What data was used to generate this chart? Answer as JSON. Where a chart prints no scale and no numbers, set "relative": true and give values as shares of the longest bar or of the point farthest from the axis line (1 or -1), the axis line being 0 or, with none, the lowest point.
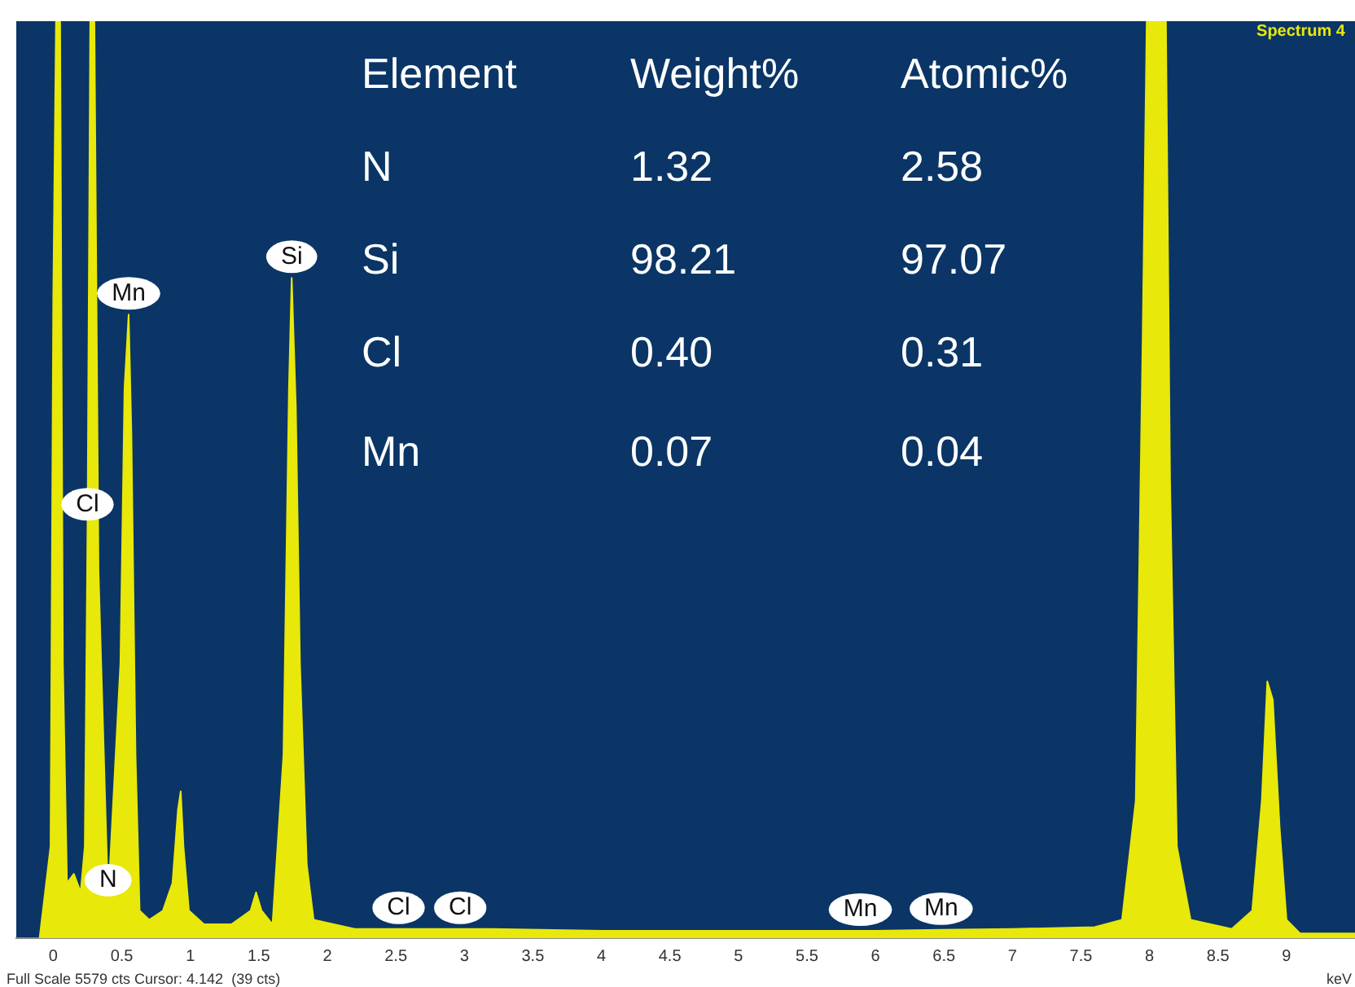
{
  "chart_data": {
    "type": "area",
    "title": "Spectrum 4",
    "xlabel": "keV",
    "relative": true,
    "grid": false,
    "legend": false,
    "marker": "none",
    "xlim": [
      -0.27,
      9.5
    ],
    "xticks": [
      0,
      0.5,
      1,
      1.5,
      2,
      2.5,
      3,
      3.5,
      4,
      4.5,
      5,
      5.5,
      6,
      6.5,
      7,
      7.5,
      8,
      8.5,
      9
    ],
    "series": [
      {
        "color": "#e8e80a",
        "x": [
          -0.1,
          -0.02,
          0.0,
          0.02,
          0.05,
          0.07,
          0.1,
          0.15,
          0.2,
          0.23,
          0.25,
          0.27,
          0.3,
          0.33,
          0.4,
          0.49,
          0.52,
          0.55,
          0.57,
          0.6,
          0.63,
          0.7,
          0.8,
          0.87,
          0.91,
          0.93,
          0.95,
          0.99,
          1.1,
          1.3,
          1.44,
          1.48,
          1.52,
          1.6,
          1.68,
          1.72,
          1.74,
          1.77,
          1.8,
          1.85,
          1.9,
          2.2,
          2.52,
          2.97,
          3.2,
          4,
          5,
          5.89,
          6,
          6.48,
          7,
          7.6,
          7.8,
          7.9,
          7.95,
          7.98,
          8.12,
          8.15,
          8.2,
          8.3,
          8.6,
          8.75,
          8.82,
          8.86,
          8.9,
          8.95,
          9.0,
          9.1,
          9.5
        ],
        "values": [
          0,
          0.1,
          0.7,
          1,
          1,
          0.3,
          0.06,
          0.07,
          0.05,
          0.1,
          0.45,
          1,
          1,
          0.4,
          0.04,
          0.3,
          0.6,
          0.68,
          0.55,
          0.2,
          0.03,
          0.02,
          0.03,
          0.06,
          0.14,
          0.16,
          0.1,
          0.03,
          0.015,
          0.015,
          0.03,
          0.05,
          0.03,
          0.015,
          0.2,
          0.6,
          0.72,
          0.58,
          0.3,
          0.08,
          0.02,
          0.01,
          0.01,
          0.01,
          0.01,
          0.008,
          0.008,
          0.008,
          0.008,
          0.009,
          0.01,
          0.012,
          0.02,
          0.15,
          0.65,
          1,
          1,
          0.5,
          0.1,
          0.02,
          0.01,
          0.03,
          0.15,
          0.28,
          0.26,
          0.12,
          0.02,
          0.005,
          0.005
        ]
      }
    ],
    "annotations": [
      "Full Scale 5579 cts Cursor: 4.142  (39 cts)",
      "Element",
      "Weight%",
      "Atomic%",
      "N",
      "1.32",
      "2.58",
      "Si",
      "98.21",
      "97.07",
      "Cl",
      "0.40",
      "0.31",
      "Mn",
      "0.07",
      "0.04",
      {
        "text": "Cl",
        "x": 0.25,
        "y": 0.45
      },
      {
        "text": "Mn",
        "x": 0.55,
        "y": 0.68
      },
      {
        "text": "Si",
        "x": 1.74,
        "y": 0.72
      },
      {
        "text": "N",
        "x": 0.4,
        "y": 0.04
      },
      {
        "text": "Cl",
        "x": 2.52,
        "y": 0.01
      },
      {
        "text": "Cl",
        "x": 2.97,
        "y": 0.01
      },
      {
        "text": "Mn",
        "x": 5.89,
        "y": 0.008
      },
      {
        "text": "Mn",
        "x": 6.48,
        "y": 0.009
      }
    ]
  }
}
